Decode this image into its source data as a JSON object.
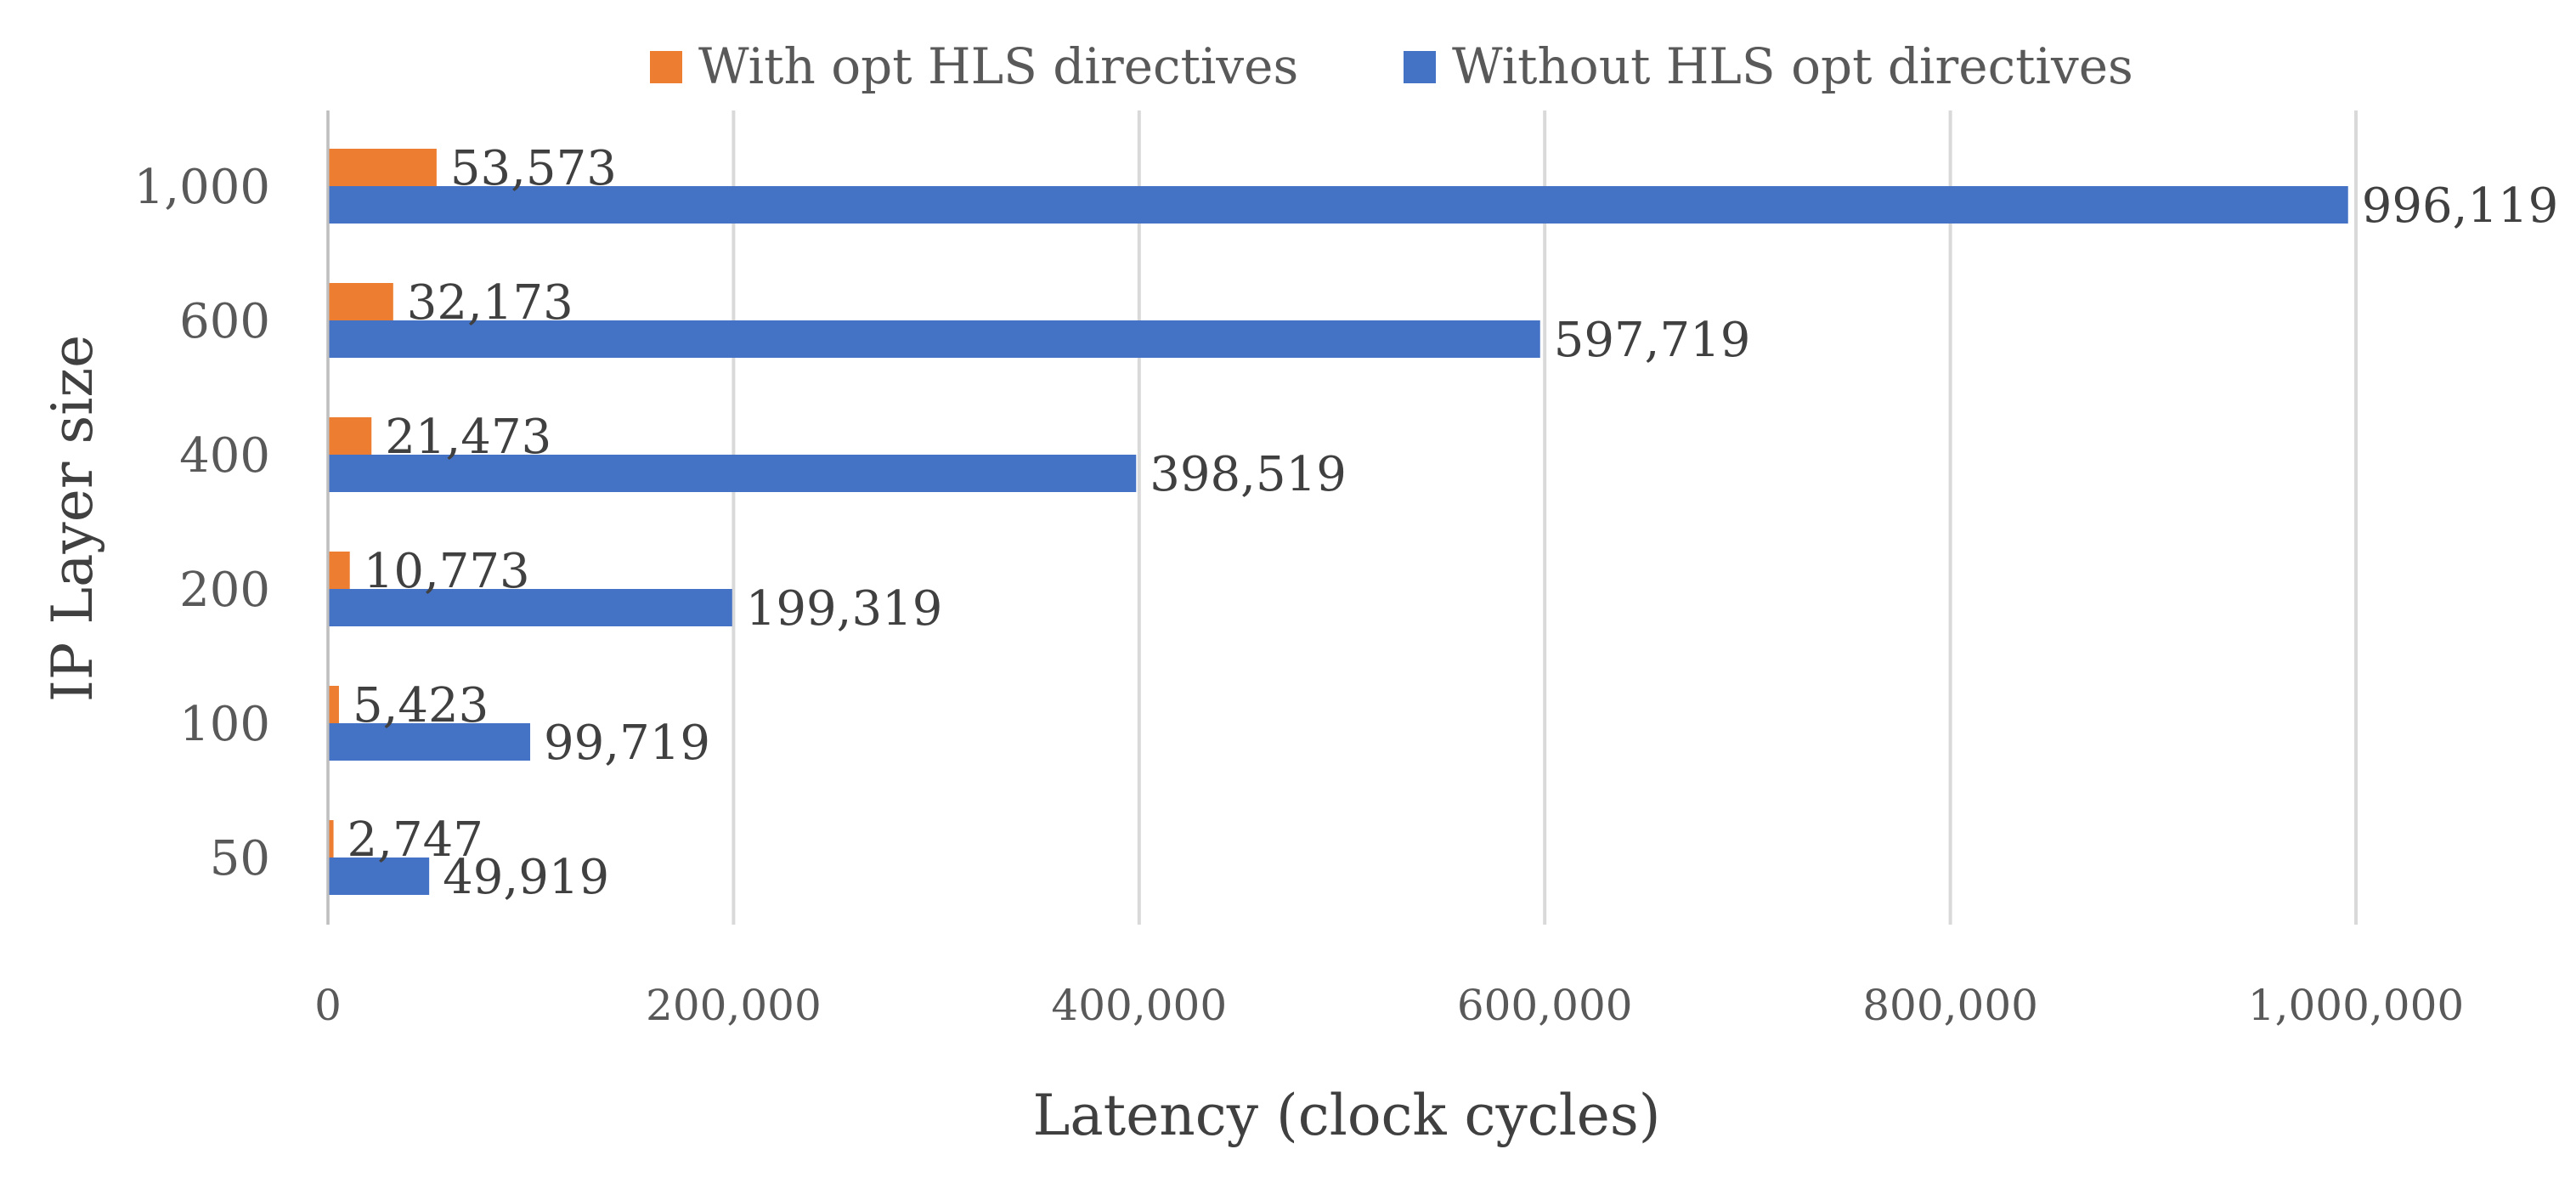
{
  "chart_data": {
    "type": "bar",
    "orientation": "horizontal",
    "title": "",
    "xlabel": "Latency (clock cycles)",
    "ylabel": "IP Layer size",
    "categories": [
      "50",
      "100",
      "200",
      "400",
      "600",
      "1,000"
    ],
    "series": [
      {
        "name": "With opt HLS directives",
        "color": "#ED7D31",
        "values": [
          2747,
          5423,
          10773,
          21473,
          32173,
          53573
        ],
        "labels": [
          "2,747",
          "5,423",
          "10,773",
          "21,473",
          "32,173",
          "53,573"
        ]
      },
      {
        "name": "Without HLS opt directives",
        "color": "#4472C4",
        "values": [
          49919,
          99719,
          199319,
          398519,
          597719,
          996119
        ],
        "labels": [
          "49,919",
          "99,719",
          "199,319",
          "398,519",
          "597,719",
          "996,119"
        ]
      }
    ],
    "xlim": [
      0,
      1000000
    ],
    "xticks": [
      0,
      200000,
      400000,
      600000,
      800000,
      1000000
    ],
    "xtick_labels": [
      "0",
      "200,000",
      "400,000",
      "600,000",
      "800,000",
      "1,000,000"
    ],
    "grid": "vertical",
    "legend_position": "top"
  }
}
